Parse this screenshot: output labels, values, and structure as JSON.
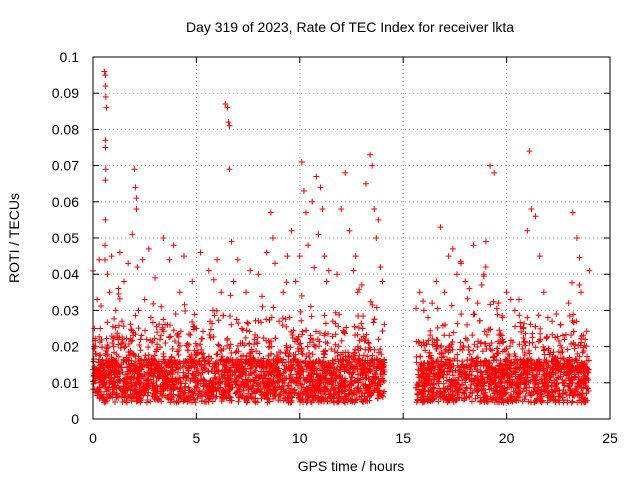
{
  "chart_data": {
    "type": "scatter",
    "title": "Day 319 of 2023, Rate Of TEC Index for receiver lkta",
    "xlabel": "GPS time / hours",
    "ylabel": "ROTI / TECUs",
    "xlim": [
      0,
      25
    ],
    "ylim": [
      0,
      0.1
    ],
    "xticks": [
      "0",
      "5",
      "10",
      "15",
      "20",
      "25"
    ],
    "yticks": [
      "0",
      "0.01",
      "0.02",
      "0.03",
      "0.04",
      "0.05",
      "0.06",
      "0.07",
      "0.08",
      "0.09",
      "0.1"
    ],
    "grid": true,
    "marker": "+",
    "color": "#ff0000",
    "data_gap_hours": [
      14.1,
      15.6
    ],
    "series": [
      {
        "x": [
          0.05,
          0.15,
          0.2,
          0.3,
          0.35,
          0.45,
          0.55,
          0.6,
          0.6,
          0.62,
          0.65,
          0.6,
          0.6,
          0.62,
          0.6,
          0.6,
          0.58,
          0.7,
          0.8,
          0.9,
          1.0,
          1.1,
          1.2,
          1.3,
          1.4,
          1.5,
          1.6,
          1.7,
          1.8,
          1.9,
          2.0,
          2.05,
          2.1,
          2.1,
          2.15,
          2.2,
          2.3,
          2.4,
          2.5,
          2.6,
          2.7,
          2.8,
          2.9,
          3.0,
          3.1,
          3.2,
          3.3,
          3.4,
          3.5,
          3.6,
          3.7,
          3.8,
          3.9,
          4.0,
          4.2,
          4.4,
          4.6,
          4.8,
          5.0,
          5.2,
          5.4,
          5.6,
          5.8,
          6.0,
          6.2,
          6.4,
          6.5,
          6.55,
          6.6,
          6.6,
          6.7,
          6.8,
          7.0,
          7.2,
          7.4,
          7.6,
          7.8,
          8.0,
          8.2,
          8.4,
          8.6,
          8.7,
          8.8,
          9.0,
          9.2,
          9.4,
          9.6,
          9.8,
          10.0,
          10.1,
          10.2,
          10.3,
          10.4,
          10.6,
          10.8,
          10.9,
          11.0,
          11.1,
          11.2,
          11.3,
          11.4,
          11.6,
          11.8,
          12.0,
          12.2,
          12.4,
          12.6,
          12.7,
          12.8,
          13.0,
          13.2,
          13.4,
          13.5,
          13.6,
          13.7,
          13.8,
          13.9,
          14.0,
          15.8,
          16.0,
          16.2,
          16.4,
          16.6,
          16.8,
          17.0,
          17.2,
          17.4,
          17.6,
          17.8,
          18.0,
          18.2,
          18.4,
          18.6,
          18.8,
          18.9,
          19.0,
          19.2,
          19.4,
          19.6,
          19.8,
          20.0,
          20.2,
          20.4,
          20.6,
          20.8,
          21.0,
          21.0,
          21.1,
          21.2,
          21.4,
          21.6,
          21.8,
          22.0,
          22.2,
          22.4,
          22.6,
          22.8,
          23.0,
          23.2,
          23.4,
          23.6,
          23.8,
          24.0
        ],
        "y": [
          0.012,
          0.018,
          0.033,
          0.044,
          0.025,
          0.015,
          0.096,
          0.095,
          0.092,
          0.089,
          0.086,
          0.077,
          0.075,
          0.069,
          0.066,
          0.055,
          0.048,
          0.04,
          0.035,
          0.045,
          0.02,
          0.03,
          0.015,
          0.046,
          0.027,
          0.038,
          0.016,
          0.043,
          0.022,
          0.051,
          0.069,
          0.064,
          0.061,
          0.058,
          0.042,
          0.03,
          0.019,
          0.044,
          0.033,
          0.022,
          0.047,
          0.028,
          0.015,
          0.039,
          0.024,
          0.013,
          0.031,
          0.05,
          0.021,
          0.026,
          0.044,
          0.017,
          0.048,
          0.029,
          0.035,
          0.045,
          0.019,
          0.038,
          0.025,
          0.046,
          0.015,
          0.041,
          0.03,
          0.044,
          0.035,
          0.087,
          0.086,
          0.082,
          0.081,
          0.069,
          0.049,
          0.038,
          0.044,
          0.025,
          0.035,
          0.041,
          0.022,
          0.04,
          0.031,
          0.046,
          0.057,
          0.05,
          0.043,
          0.027,
          0.035,
          0.045,
          0.052,
          0.038,
          0.045,
          0.071,
          0.063,
          0.057,
          0.048,
          0.06,
          0.067,
          0.051,
          0.064,
          0.058,
          0.045,
          0.038,
          0.041,
          0.027,
          0.04,
          0.058,
          0.068,
          0.052,
          0.041,
          0.045,
          0.035,
          0.037,
          0.065,
          0.073,
          0.07,
          0.058,
          0.05,
          0.055,
          0.042,
          0.038,
          0.035,
          0.03,
          0.028,
          0.032,
          0.038,
          0.053,
          0.035,
          0.045,
          0.047,
          0.04,
          0.043,
          0.038,
          0.036,
          0.048,
          0.032,
          0.037,
          0.04,
          0.049,
          0.07,
          0.068,
          0.032,
          0.028,
          0.035,
          0.033,
          0.03,
          0.033,
          0.025,
          0.028,
          0.052,
          0.074,
          0.058,
          0.056,
          0.045,
          0.035,
          0.028,
          0.027,
          0.029,
          0.026,
          0.022,
          0.032,
          0.057,
          0.05,
          0.035,
          0.022,
          0.041
        ]
      }
    ]
  }
}
